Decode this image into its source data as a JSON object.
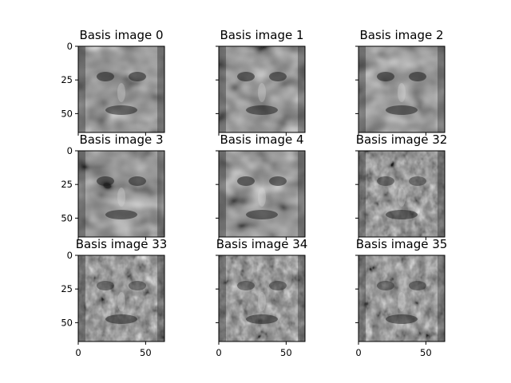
{
  "chart_data": {
    "type": "image-grid",
    "rows": 3,
    "cols": 3,
    "image_size": [
      64,
      64
    ],
    "colormap": "gray",
    "axis": {
      "xlim": [
        0,
        64
      ],
      "ylim": [
        64,
        0
      ],
      "x_ticks": [
        0,
        50
      ],
      "y_ticks": [
        0,
        25,
        50
      ],
      "x_tick_labels_shown_on": "bottom row only",
      "y_tick_labels_shown_on": "left column only"
    },
    "panels": [
      {
        "title": "Basis image 0",
        "index": 0
      },
      {
        "title": "Basis image 1",
        "index": 1
      },
      {
        "title": "Basis image 2",
        "index": 2
      },
      {
        "title": "Basis image 3",
        "index": 3
      },
      {
        "title": "Basis image 4",
        "index": 4
      },
      {
        "title": "Basis image 32",
        "index": 32
      },
      {
        "title": "Basis image 33",
        "index": 33
      },
      {
        "title": "Basis image 34",
        "index": 34
      },
      {
        "title": "Basis image 35",
        "index": 35
      }
    ]
  }
}
